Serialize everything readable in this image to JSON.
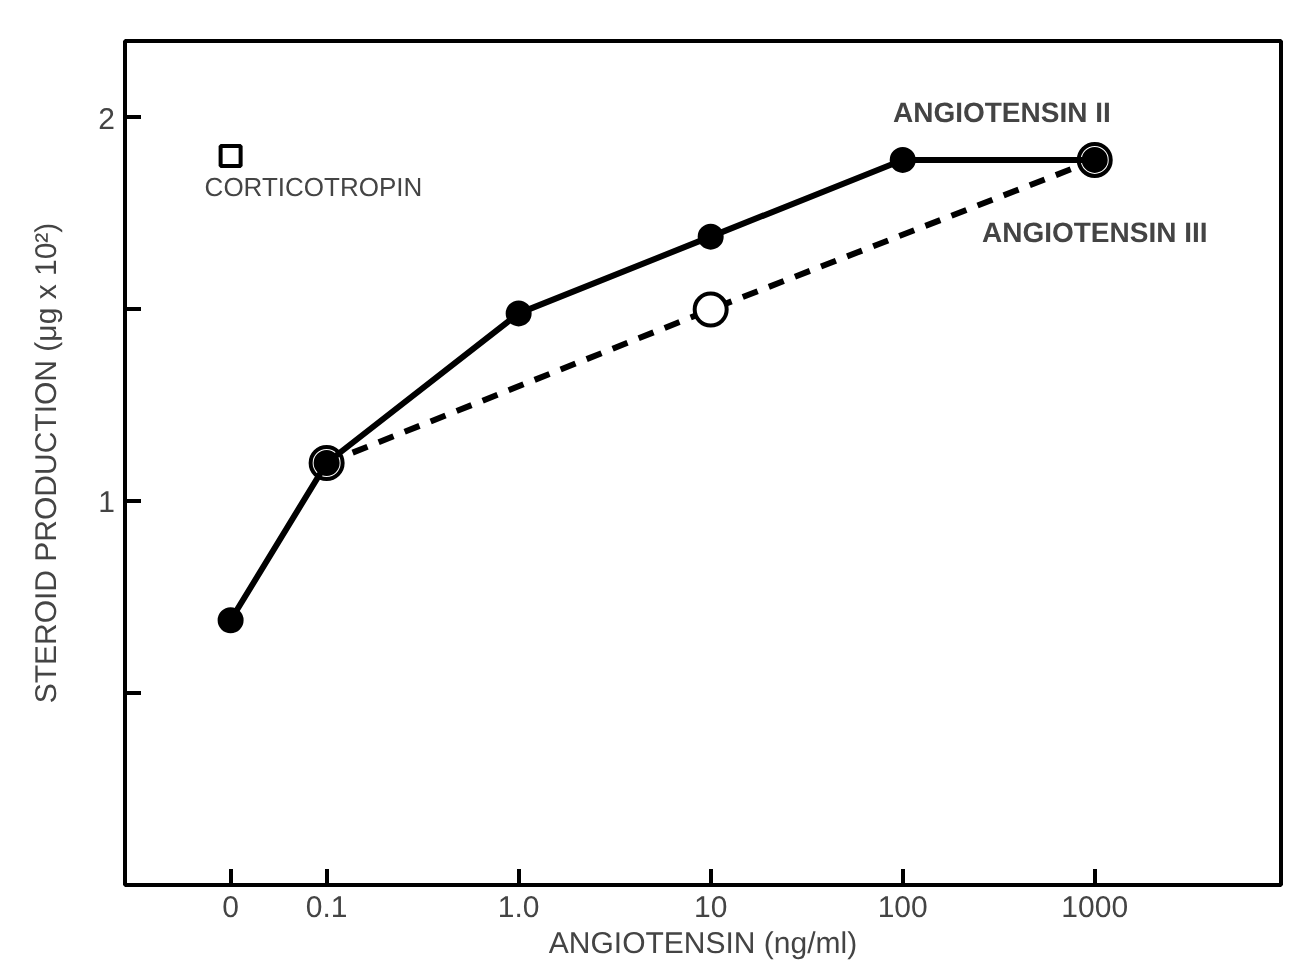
{
  "chart_data": {
    "type": "line",
    "xlabel": "ANGIOTENSIN (ng/ml)",
    "ylabel": "STEROID PRODUCTION (μg x 10²)",
    "categories": [
      "0",
      "0.1",
      "1.0",
      "10",
      "100",
      "1000"
    ],
    "series": [
      {
        "name": "ANGIOTENSIN II",
        "color": "#000000",
        "values": [
          0.69,
          1.1,
          1.49,
          1.69,
          1.89,
          1.89
        ],
        "marker": "circle",
        "line_style": "solid"
      },
      {
        "name": "ANGIOTENSIN III",
        "color": "#000000",
        "values": [
          null,
          1.1,
          null,
          1.5,
          null,
          1.89
        ],
        "marker": "circle",
        "line_style": "dashed"
      },
      {
        "name": "CORTICOTROPIN",
        "type": "scatter",
        "color": "#000000",
        "values": [
          1.9,
          null,
          null,
          null,
          null,
          null
        ],
        "marker": "square"
      }
    ],
    "ylim": [
      0,
      2.2
    ],
    "yticks": [
      {
        "value": 0.5,
        "label": null
      },
      1,
      {
        "value": 1.5,
        "label": null
      },
      2
    ],
    "grid": false
  }
}
